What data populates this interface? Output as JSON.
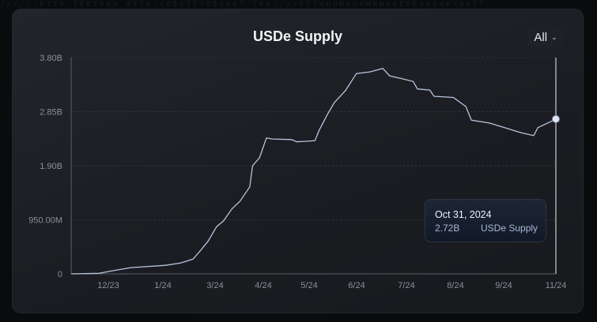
{
  "chart_data": {
    "type": "line",
    "title": "USDe Supply",
    "xlabel": "",
    "ylabel": "",
    "ylim": [
      0,
      3800000000
    ],
    "y_ticks": [
      "0",
      "950.00M",
      "1.90B",
      "2.85B",
      "3.80B"
    ],
    "y_tick_values": [
      0,
      950000000,
      1900000000,
      2850000000,
      3800000000
    ],
    "x_ticks": [
      "12/23",
      "1/24",
      "3/24",
      "4/24",
      "5/24",
      "6/24",
      "7/24",
      "8/24",
      "9/24",
      "11/24"
    ],
    "grid": "horizontal dotted",
    "line_color": "#b8c4dc",
    "series": [
      {
        "name": "USDe Supply",
        "points": [
          [
            "2023-11-16",
            0
          ],
          [
            "2023-12-06",
            0.01
          ],
          [
            "2023-12-15",
            0.05
          ],
          [
            "2023-12-29",
            0.11
          ],
          [
            "2024-01-23",
            0.15
          ],
          [
            "2024-02-03",
            0.19
          ],
          [
            "2024-02-12",
            0.26
          ],
          [
            "2024-02-17",
            0.4
          ],
          [
            "2024-02-23",
            0.58
          ],
          [
            "2024-02-29",
            0.83
          ],
          [
            "2024-03-05",
            0.93
          ],
          [
            "2024-03-11",
            1.14
          ],
          [
            "2024-03-17",
            1.28
          ],
          [
            "2024-03-24",
            1.53
          ],
          [
            "2024-03-26",
            1.9
          ],
          [
            "2024-03-31",
            2.04
          ],
          [
            "2024-04-05",
            2.39
          ],
          [
            "2024-04-09",
            2.37
          ],
          [
            "2024-04-23",
            2.36
          ],
          [
            "2024-04-27",
            2.32
          ],
          [
            "2024-05-10",
            2.34
          ],
          [
            "2024-05-13",
            2.52
          ],
          [
            "2024-05-19",
            2.8
          ],
          [
            "2024-05-24",
            3.01
          ],
          [
            "2024-06-01",
            3.22
          ],
          [
            "2024-06-09",
            3.52
          ],
          [
            "2024-06-19",
            3.55
          ],
          [
            "2024-06-28",
            3.61
          ],
          [
            "2024-07-03",
            3.48
          ],
          [
            "2024-07-12",
            3.43
          ],
          [
            "2024-07-20",
            3.38
          ],
          [
            "2024-07-23",
            3.25
          ],
          [
            "2024-08-01",
            3.23
          ],
          [
            "2024-08-04",
            3.12
          ],
          [
            "2024-08-18",
            3.1
          ],
          [
            "2024-08-27",
            2.94
          ],
          [
            "2024-08-31",
            2.7
          ],
          [
            "2024-09-13",
            2.65
          ],
          [
            "2024-09-24",
            2.57
          ],
          [
            "2024-10-06",
            2.48
          ],
          [
            "2024-10-15",
            2.43
          ],
          [
            "2024-10-18",
            2.57
          ],
          [
            "2024-10-26",
            2.66
          ],
          [
            "2024-10-31",
            2.72
          ]
        ],
        "unit": "B"
      }
    ]
  },
  "controls": {
    "range_label": "All",
    "range_chevron": "⌄"
  },
  "tooltip": {
    "date": "Oct 31, 2024",
    "value": "2.72B",
    "series": "USDe Supply"
  }
}
